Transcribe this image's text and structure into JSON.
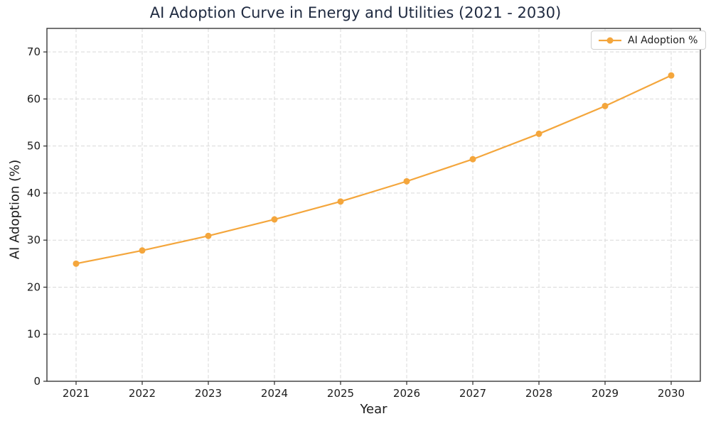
{
  "chart_data": {
    "type": "line",
    "title": "AI Adoption Curve in Energy and Utilities (2021 - 2030)",
    "xlabel": "Year",
    "ylabel": "AI Adoption (%)",
    "categories": [
      "2021",
      "2022",
      "2023",
      "2024",
      "2025",
      "2026",
      "2027",
      "2028",
      "2029",
      "2030"
    ],
    "series": [
      {
        "name": "AI Adoption %",
        "marker": "circle",
        "values": [
          25.0,
          27.8,
          30.9,
          34.4,
          38.2,
          42.5,
          47.2,
          52.6,
          58.5,
          65.0
        ]
      }
    ],
    "ylim": [
      0,
      75
    ],
    "yticks": [
      0,
      10,
      20,
      30,
      40,
      50,
      60,
      70
    ],
    "grid": "dashed-both-axes",
    "legend": {
      "position": "upper-right",
      "label": "AI Adoption %"
    },
    "colors": {
      "line": "#F4A63C",
      "grid": "#D9D9D9",
      "spine": "#2A2A2A",
      "title": "#1F2A40",
      "tick_label": "#1C1C1C"
    }
  }
}
